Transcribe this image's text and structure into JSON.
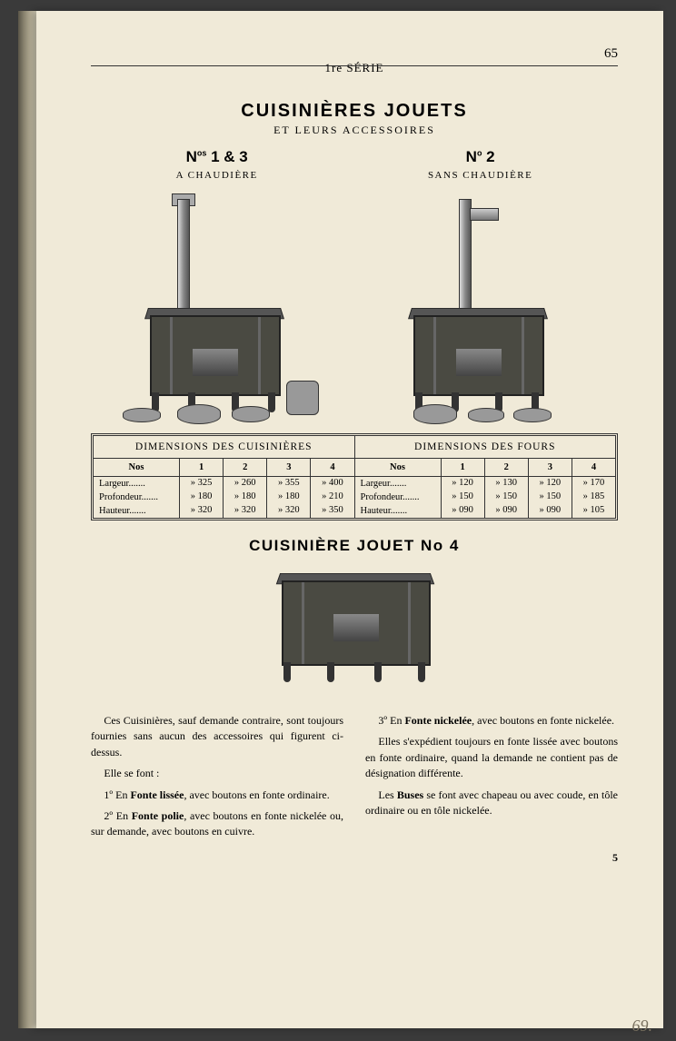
{
  "header": {
    "series": "1re SÉRIE",
    "page_number": "65"
  },
  "title": "CUISINIÈRES JOUETS",
  "subtitle": "ET LEURS ACCESSOIRES",
  "variants": {
    "left": {
      "num": "Nos 1 & 3",
      "label": "A CHAUDIÈRE"
    },
    "right": {
      "num": "No 2",
      "label": "SANS CHAUDIÈRE"
    }
  },
  "tables": {
    "cuisinieres": {
      "title": "DIMENSIONS DES CUISINIÈRES",
      "col_header": "Nos",
      "cols": [
        "1",
        "2",
        "3",
        "4"
      ],
      "rows": [
        {
          "label": "Largeur",
          "vals": [
            "» 325",
            "» 260",
            "» 355",
            "» 400"
          ]
        },
        {
          "label": "Profondeur",
          "vals": [
            "» 180",
            "» 180",
            "» 180",
            "» 210"
          ]
        },
        {
          "label": "Hauteur",
          "vals": [
            "» 320",
            "» 320",
            "» 320",
            "» 350"
          ]
        }
      ]
    },
    "fours": {
      "title": "DIMENSIONS DES FOURS",
      "col_header": "Nos",
      "cols": [
        "1",
        "2",
        "3",
        "4"
      ],
      "rows": [
        {
          "label": "Largeur",
          "vals": [
            "» 120",
            "» 130",
            "» 120",
            "» 170"
          ]
        },
        {
          "label": "Profondeur",
          "vals": [
            "» 150",
            "» 150",
            "» 150",
            "» 185"
          ]
        },
        {
          "label": "Hauteur",
          "vals": [
            "» 090",
            "» 090",
            "» 090",
            "» 105"
          ]
        }
      ]
    }
  },
  "section2_title": "CUISINIÈRE JOUET No 4",
  "body": {
    "left": [
      "Ces Cuisinières, sauf demande contraire, sont toujours fournies sans aucun des accessoires qui figurent ci-dessus.",
      "Elle se font :",
      "1º En <b>Fonte lissée</b>, avec boutons en fonte ordinaire.",
      "2º En <b>Fonte polie</b>, avec boutons en fonte nickelée ou, sur demande, avec boutons en cuivre."
    ],
    "right": [
      "3º En <b>Fonte nickelée</b>, avec boutons en fonte nickelée.",
      "Elles s'expédient toujours en fonte lissée avec boutons en fonte ordinaire, quand la demande ne contient pas de désignation différente.",
      "Les <b>Buses</b> se font avec chapeau ou avec coude, en tôle ordinaire ou en tôle nickelée."
    ]
  },
  "signature": "5",
  "handwritten_note": "69.",
  "colors": {
    "paper": "#f0ead8",
    "ink": "#2a2a26",
    "spine_dark": "#5a5548"
  }
}
